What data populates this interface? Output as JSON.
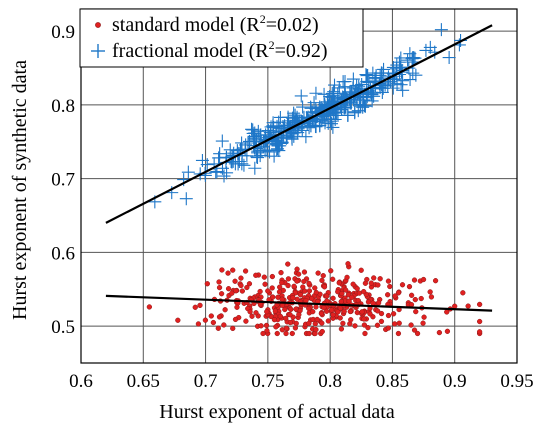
{
  "chart_data": {
    "type": "scatter",
    "title": "",
    "xlabel": "Hurst exponent of actual data",
    "ylabel": "Hurst exponent of synthetic data",
    "xlim": [
      0.6,
      0.95
    ],
    "ylim": [
      0.45,
      0.93
    ],
    "xticks": [
      "0.6",
      "0.65",
      "0.7",
      "0.75",
      "0.8",
      "0.85",
      "0.9",
      "0.95"
    ],
    "yticks": [
      "0.5",
      "0.6",
      "0.7",
      "0.8",
      "0.9"
    ],
    "grid": true,
    "legend_position": "top-left",
    "series": [
      {
        "name": "standard model",
        "legend_prefix": "standard model  (R",
        "legend_sup": "2",
        "legend_suffix": "=0.02)",
        "marker": "dot",
        "color": "#e02020",
        "edge_color": "#8b1a1a",
        "cloud": {
          "x_center": 0.79,
          "x_sd": 0.045,
          "x_range": [
            0.63,
            0.92
          ],
          "y_mean_at_x": [
            0.541,
            0.522
          ],
          "y_sd": 0.022,
          "y_range": [
            0.49,
            0.615
          ],
          "count": 420,
          "seed": 7
        },
        "fit_line": {
          "x": [
            0.62,
            0.93
          ],
          "y": [
            0.541,
            0.521
          ],
          "color": "#000000"
        }
      },
      {
        "name": "fractional model",
        "legend_prefix": "fractional model (R",
        "legend_sup": "2",
        "legend_suffix": "=0.92)",
        "marker": "plus",
        "color": "#1f77c8",
        "cloud": {
          "x_center": 0.79,
          "x_sd": 0.045,
          "x_range": [
            0.63,
            0.92
          ],
          "line": [
            [
              0.62,
              0.64
            ],
            [
              0.93,
              0.908
            ]
          ],
          "y_sd": 0.011,
          "count": 420,
          "seed": 13
        },
        "fit_line": {
          "x": [
            0.62,
            0.93
          ],
          "y": [
            0.64,
            0.908
          ],
          "color": "#000000"
        }
      }
    ]
  },
  "colors": {
    "grid": "#555555",
    "axis": "#000000",
    "legend_border": "#000000"
  }
}
